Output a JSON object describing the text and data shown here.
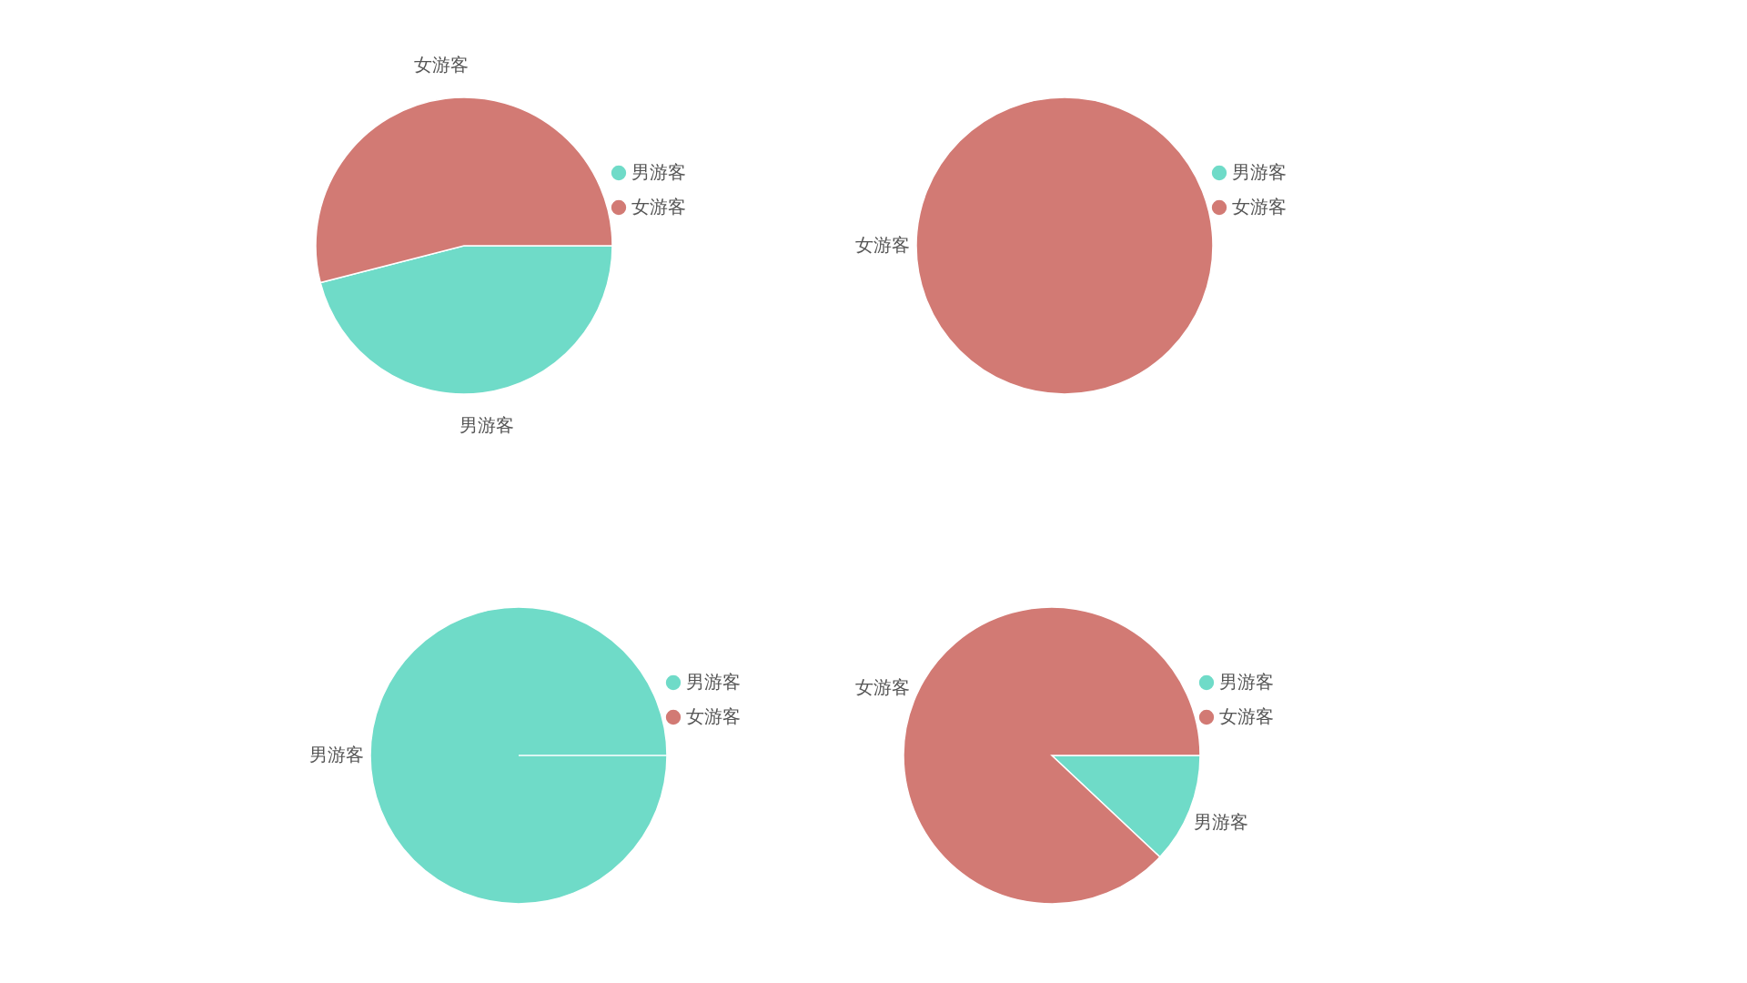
{
  "chart_data": [
    {
      "type": "pie",
      "categories": [
        "男游客",
        "女游客"
      ],
      "values": [
        46,
        54
      ],
      "colors": [
        "#6fdbc8",
        "#d27a74"
      ],
      "legend": "right"
    },
    {
      "type": "pie",
      "categories": [
        "男游客",
        "女游客"
      ],
      "values": [
        0,
        100
      ],
      "colors": [
        "#6fdbc8",
        "#d27a74"
      ],
      "legend": "right"
    },
    {
      "type": "pie",
      "categories": [
        "男游客",
        "女游客"
      ],
      "values": [
        100,
        0
      ],
      "colors": [
        "#6fdbc8",
        "#d27a74"
      ],
      "legend": "right"
    },
    {
      "type": "pie",
      "categories": [
        "男游客",
        "女游客"
      ],
      "values": [
        12,
        88
      ],
      "colors": [
        "#6fdbc8",
        "#d27a74"
      ],
      "legend": "right"
    }
  ]
}
